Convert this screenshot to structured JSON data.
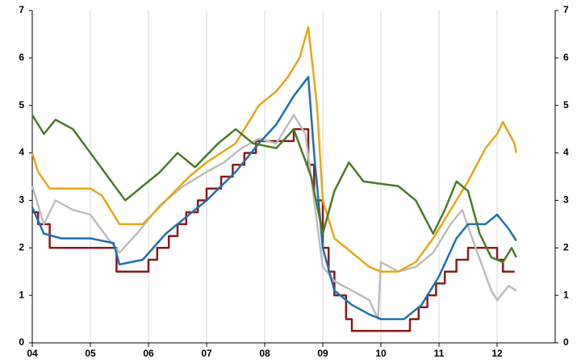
{
  "chart_data": {
    "type": "line",
    "grid": true,
    "xlim": [
      2004,
      2013
    ],
    "xticks": [
      {
        "value": 2004,
        "label": "04"
      },
      {
        "value": 2005,
        "label": "05"
      },
      {
        "value": 2006,
        "label": "06"
      },
      {
        "value": 2007,
        "label": "07"
      },
      {
        "value": 2008,
        "label": "08"
      },
      {
        "value": 2009,
        "label": "09"
      },
      {
        "value": 2010,
        "label": "10"
      },
      {
        "value": 2011,
        "label": "11"
      },
      {
        "value": 2012,
        "label": "12"
      }
    ],
    "ylim": [
      0,
      7
    ],
    "yticks": [
      0,
      1,
      2,
      3,
      4,
      5,
      6,
      7
    ],
    "y2lim": [
      0,
      7
    ],
    "y2ticks": [
      0,
      1,
      2,
      3,
      4,
      5,
      6,
      7
    ],
    "series": [
      {
        "color": "#8b1a1a",
        "step": true,
        "x": [
          2004.0,
          2004.1,
          2004.3,
          2005.45,
          2006.0,
          2006.15,
          2006.35,
          2006.5,
          2006.65,
          2006.85,
          2007.0,
          2007.25,
          2007.45,
          2007.65,
          2007.85,
          2008.5,
          2008.75,
          2008.85,
          2009.0,
          2009.1,
          2009.2,
          2009.4,
          2009.5,
          2010.5,
          2010.65,
          2010.8,
          2010.95,
          2011.1,
          2011.3,
          2011.5,
          2012.0,
          2012.1,
          2012.3
        ],
        "values": [
          2.75,
          2.5,
          2.0,
          1.5,
          1.75,
          2.0,
          2.25,
          2.5,
          2.75,
          3.0,
          3.25,
          3.5,
          3.75,
          4.0,
          4.25,
          4.5,
          3.75,
          3.0,
          2.0,
          1.5,
          1.0,
          0.5,
          0.25,
          0.5,
          0.75,
          1.0,
          1.25,
          1.5,
          1.75,
          2.0,
          1.75,
          1.5,
          1.5
        ]
      },
      {
        "color": "#bdbdbd",
        "x": [
          2004.0,
          2004.2,
          2004.4,
          2004.7,
          2005.0,
          2005.3,
          2005.5,
          2005.8,
          2006.2,
          2006.6,
          2007.0,
          2007.3,
          2007.6,
          2007.9,
          2008.2,
          2008.5,
          2008.7,
          2008.85,
          2009.0,
          2009.2,
          2009.5,
          2009.8,
          2009.95,
          2010.0,
          2010.3,
          2010.6,
          2010.9,
          2011.2,
          2011.4,
          2011.6,
          2011.9,
          2012.0,
          2012.2,
          2012.33
        ],
        "values": [
          3.3,
          2.5,
          3.0,
          2.8,
          2.7,
          2.2,
          1.9,
          2.3,
          2.9,
          3.3,
          3.6,
          3.8,
          4.1,
          4.3,
          4.2,
          4.8,
          4.4,
          3.0,
          1.6,
          1.3,
          1.1,
          0.9,
          0.5,
          1.7,
          1.5,
          1.6,
          1.9,
          2.5,
          2.8,
          2.1,
          1.1,
          0.9,
          1.2,
          1.1
        ]
      },
      {
        "color": "#e6a817",
        "x": [
          2004.0,
          2004.1,
          2004.3,
          2005.0,
          2005.2,
          2005.5,
          2005.9,
          2006.3,
          2006.7,
          2007.0,
          2007.5,
          2007.9,
          2008.2,
          2008.4,
          2008.6,
          2008.75,
          2008.9,
          2009.0,
          2009.2,
          2009.5,
          2009.8,
          2010.0,
          2010.3,
          2010.6,
          2010.9,
          2011.2,
          2011.5,
          2011.8,
          2012.0,
          2012.1,
          2012.3,
          2012.33
        ],
        "values": [
          4.0,
          3.6,
          3.25,
          3.25,
          3.1,
          2.5,
          2.5,
          3.0,
          3.5,
          3.8,
          4.2,
          5.0,
          5.3,
          5.6,
          6.0,
          6.65,
          5.0,
          3.0,
          2.2,
          1.9,
          1.6,
          1.5,
          1.5,
          1.7,
          2.2,
          2.8,
          3.4,
          4.1,
          4.4,
          4.65,
          4.2,
          4.0
        ]
      },
      {
        "color": "#1f6fb0",
        "x": [
          2004.0,
          2004.2,
          2004.5,
          2005.0,
          2005.4,
          2005.5,
          2005.9,
          2006.3,
          2006.7,
          2007.0,
          2007.5,
          2007.9,
          2008.2,
          2008.5,
          2008.75,
          2008.85,
          2009.0,
          2009.2,
          2009.5,
          2009.8,
          2010.0,
          2010.4,
          2010.7,
          2011.0,
          2011.3,
          2011.5,
          2011.8,
          2012.0,
          2012.2,
          2012.33
        ],
        "values": [
          2.85,
          2.3,
          2.2,
          2.2,
          2.1,
          1.65,
          1.75,
          2.3,
          2.7,
          3.0,
          3.6,
          4.2,
          4.6,
          5.2,
          5.6,
          4.0,
          2.0,
          1.1,
          0.8,
          0.6,
          0.5,
          0.5,
          0.8,
          1.4,
          2.2,
          2.5,
          2.5,
          2.7,
          2.4,
          2.15
        ]
      },
      {
        "color": "#4a7a2a",
        "x": [
          2004.0,
          2004.2,
          2004.4,
          2004.7,
          2005.0,
          2005.3,
          2005.6,
          2005.9,
          2006.2,
          2006.5,
          2006.8,
          2007.2,
          2007.5,
          2007.8,
          2008.2,
          2008.5,
          2008.8,
          2009.0,
          2009.2,
          2009.45,
          2009.7,
          2010.0,
          2010.3,
          2010.6,
          2010.9,
          2011.1,
          2011.3,
          2011.5,
          2011.7,
          2011.9,
          2012.1,
          2012.25,
          2012.33
        ],
        "values": [
          4.8,
          4.4,
          4.7,
          4.5,
          4.0,
          3.5,
          3.0,
          3.3,
          3.6,
          4.0,
          3.7,
          4.2,
          4.5,
          4.2,
          4.1,
          4.5,
          3.5,
          2.3,
          3.2,
          3.8,
          3.4,
          3.35,
          3.3,
          3.0,
          2.3,
          2.8,
          3.4,
          3.2,
          2.3,
          1.8,
          1.7,
          2.0,
          1.8
        ]
      }
    ]
  }
}
